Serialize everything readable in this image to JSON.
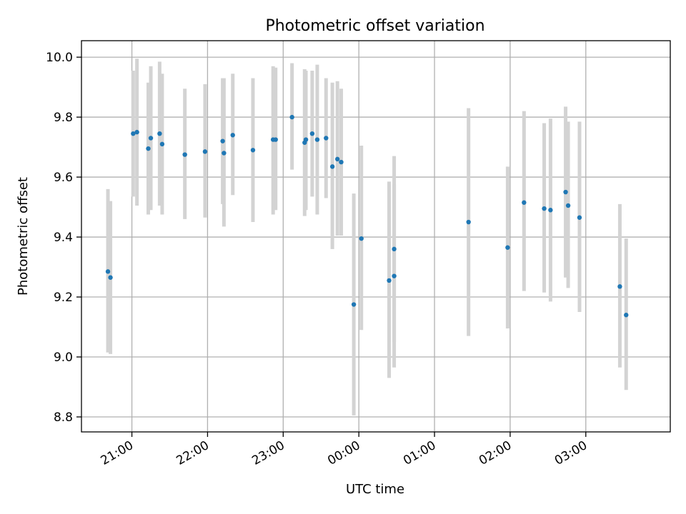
{
  "chart_data": {
    "type": "scatter",
    "title": "Photometric offset variation",
    "xlabel": "UTC time",
    "ylabel": "Photometric offset",
    "ylim": [
      8.75,
      10.055
    ],
    "xlim": [
      "20:20",
      "04:07"
    ],
    "x_ticks": [
      "21:00",
      "22:00",
      "23:00",
      "00:00",
      "01:00",
      "02:00",
      "03:00"
    ],
    "y_ticks": [
      8.8,
      9.0,
      9.2,
      9.4,
      9.6,
      9.8,
      10.0
    ],
    "grid": true,
    "marker_color": "#1f77b4",
    "errorbar_color": "#d3d3d3",
    "series": [
      {
        "points": [
          {
            "time": "20:41",
            "y": 9.285,
            "low": 9.015,
            "high": 9.56
          },
          {
            "time": "20:43",
            "y": 9.265,
            "low": 9.01,
            "high": 9.52
          },
          {
            "time": "21:01",
            "y": 9.745,
            "low": 9.535,
            "high": 9.955
          },
          {
            "time": "21:04",
            "y": 9.75,
            "low": 9.505,
            "high": 9.995
          },
          {
            "time": "21:13",
            "y": 9.695,
            "low": 9.475,
            "high": 9.915
          },
          {
            "time": "21:15",
            "y": 9.73,
            "low": 9.49,
            "high": 9.97
          },
          {
            "time": "21:22",
            "y": 9.745,
            "low": 9.505,
            "high": 9.985
          },
          {
            "time": "21:24",
            "y": 9.71,
            "low": 9.475,
            "high": 9.945
          },
          {
            "time": "21:42",
            "y": 9.675,
            "low": 9.46,
            "high": 9.895
          },
          {
            "time": "21:58",
            "y": 9.685,
            "low": 9.465,
            "high": 9.91
          },
          {
            "time": "22:12",
            "y": 9.72,
            "low": 9.51,
            "high": 9.93
          },
          {
            "time": "22:13",
            "y": 9.68,
            "low": 9.435,
            "high": 9.93
          },
          {
            "time": "22:20",
            "y": 9.74,
            "low": 9.54,
            "high": 9.945
          },
          {
            "time": "22:36",
            "y": 9.69,
            "low": 9.45,
            "high": 9.93
          },
          {
            "time": "22:52",
            "y": 9.725,
            "low": 9.475,
            "high": 9.97
          },
          {
            "time": "22:54",
            "y": 9.725,
            "low": 9.49,
            "high": 9.965
          },
          {
            "time": "23:07",
            "y": 9.8,
            "low": 9.625,
            "high": 9.98
          },
          {
            "time": "23:17",
            "y": 9.715,
            "low": 9.47,
            "high": 9.96
          },
          {
            "time": "23:18",
            "y": 9.725,
            "low": 9.49,
            "high": 9.955
          },
          {
            "time": "23:23",
            "y": 9.745,
            "low": 9.535,
            "high": 9.955
          },
          {
            "time": "23:27",
            "y": 9.725,
            "low": 9.475,
            "high": 9.975
          },
          {
            "time": "23:34",
            "y": 9.73,
            "low": 9.53,
            "high": 9.93
          },
          {
            "time": "23:39",
            "y": 9.635,
            "low": 9.36,
            "high": 9.915
          },
          {
            "time": "23:43",
            "y": 9.66,
            "low": 9.405,
            "high": 9.92
          },
          {
            "time": "23:46",
            "y": 9.65,
            "low": 9.405,
            "high": 9.895
          },
          {
            "time": "23:56",
            "y": 9.175,
            "low": 8.805,
            "high": 9.545
          },
          {
            "time": "00:02",
            "y": 9.395,
            "low": 9.09,
            "high": 9.705
          },
          {
            "time": "00:24",
            "y": 9.255,
            "low": 8.93,
            "high": 9.585
          },
          {
            "time": "00:28",
            "y": 9.36,
            "low": 9.05,
            "high": 9.67
          },
          {
            "time": "00:28",
            "y": 9.27,
            "low": 8.965,
            "high": 9.575
          },
          {
            "time": "01:27",
            "y": 9.45,
            "low": 9.07,
            "high": 9.83
          },
          {
            "time": "01:58",
            "y": 9.365,
            "low": 9.095,
            "high": 9.635
          },
          {
            "time": "02:11",
            "y": 9.515,
            "low": 9.22,
            "high": 9.82
          },
          {
            "time": "02:27",
            "y": 9.495,
            "low": 9.215,
            "high": 9.78
          },
          {
            "time": "02:32",
            "y": 9.49,
            "low": 9.185,
            "high": 9.795
          },
          {
            "time": "02:44",
            "y": 9.55,
            "low": 9.265,
            "high": 9.835
          },
          {
            "time": "02:46",
            "y": 9.505,
            "low": 9.23,
            "high": 9.785
          },
          {
            "time": "02:55",
            "y": 9.465,
            "low": 9.15,
            "high": 9.785
          },
          {
            "time": "03:27",
            "y": 9.235,
            "low": 8.965,
            "high": 9.51
          },
          {
            "time": "03:32",
            "y": 9.14,
            "low": 8.89,
            "high": 9.395
          }
        ]
      }
    ]
  }
}
